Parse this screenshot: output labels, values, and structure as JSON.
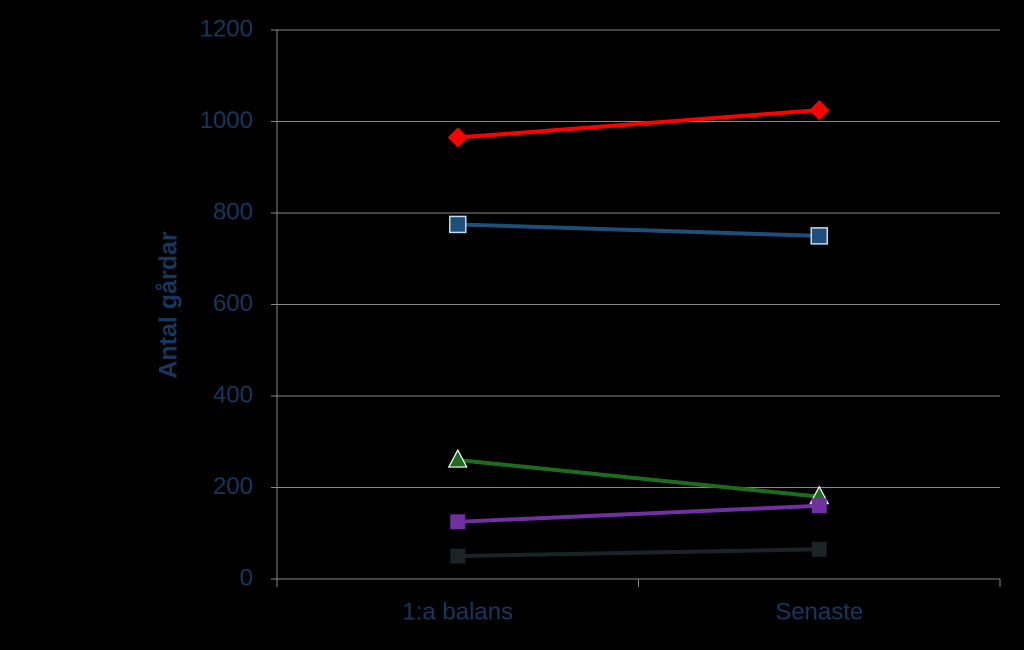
{
  "chart_data": {
    "type": "line",
    "ylabel": "Antal gårdar",
    "categories": [
      "1:a balans",
      "Senaste"
    ],
    "series": [
      {
        "color": "#ff0000",
        "marker": "diamond",
        "values": [
          965,
          1025
        ]
      },
      {
        "color": "#1f4e79",
        "marker": "square-outline",
        "values": [
          775,
          750
        ]
      },
      {
        "color": "#1e6b1e",
        "marker": "triangle",
        "values": [
          260,
          180
        ]
      },
      {
        "color": "#7030a0",
        "marker": "square",
        "values": [
          125,
          160
        ]
      },
      {
        "color": "#1a2428",
        "marker": "square",
        "values": [
          50,
          65
        ]
      }
    ],
    "ylim": [
      0,
      1200
    ],
    "yticks": [
      0,
      200,
      400,
      600,
      800,
      1000,
      1200
    ],
    "grid": true
  }
}
